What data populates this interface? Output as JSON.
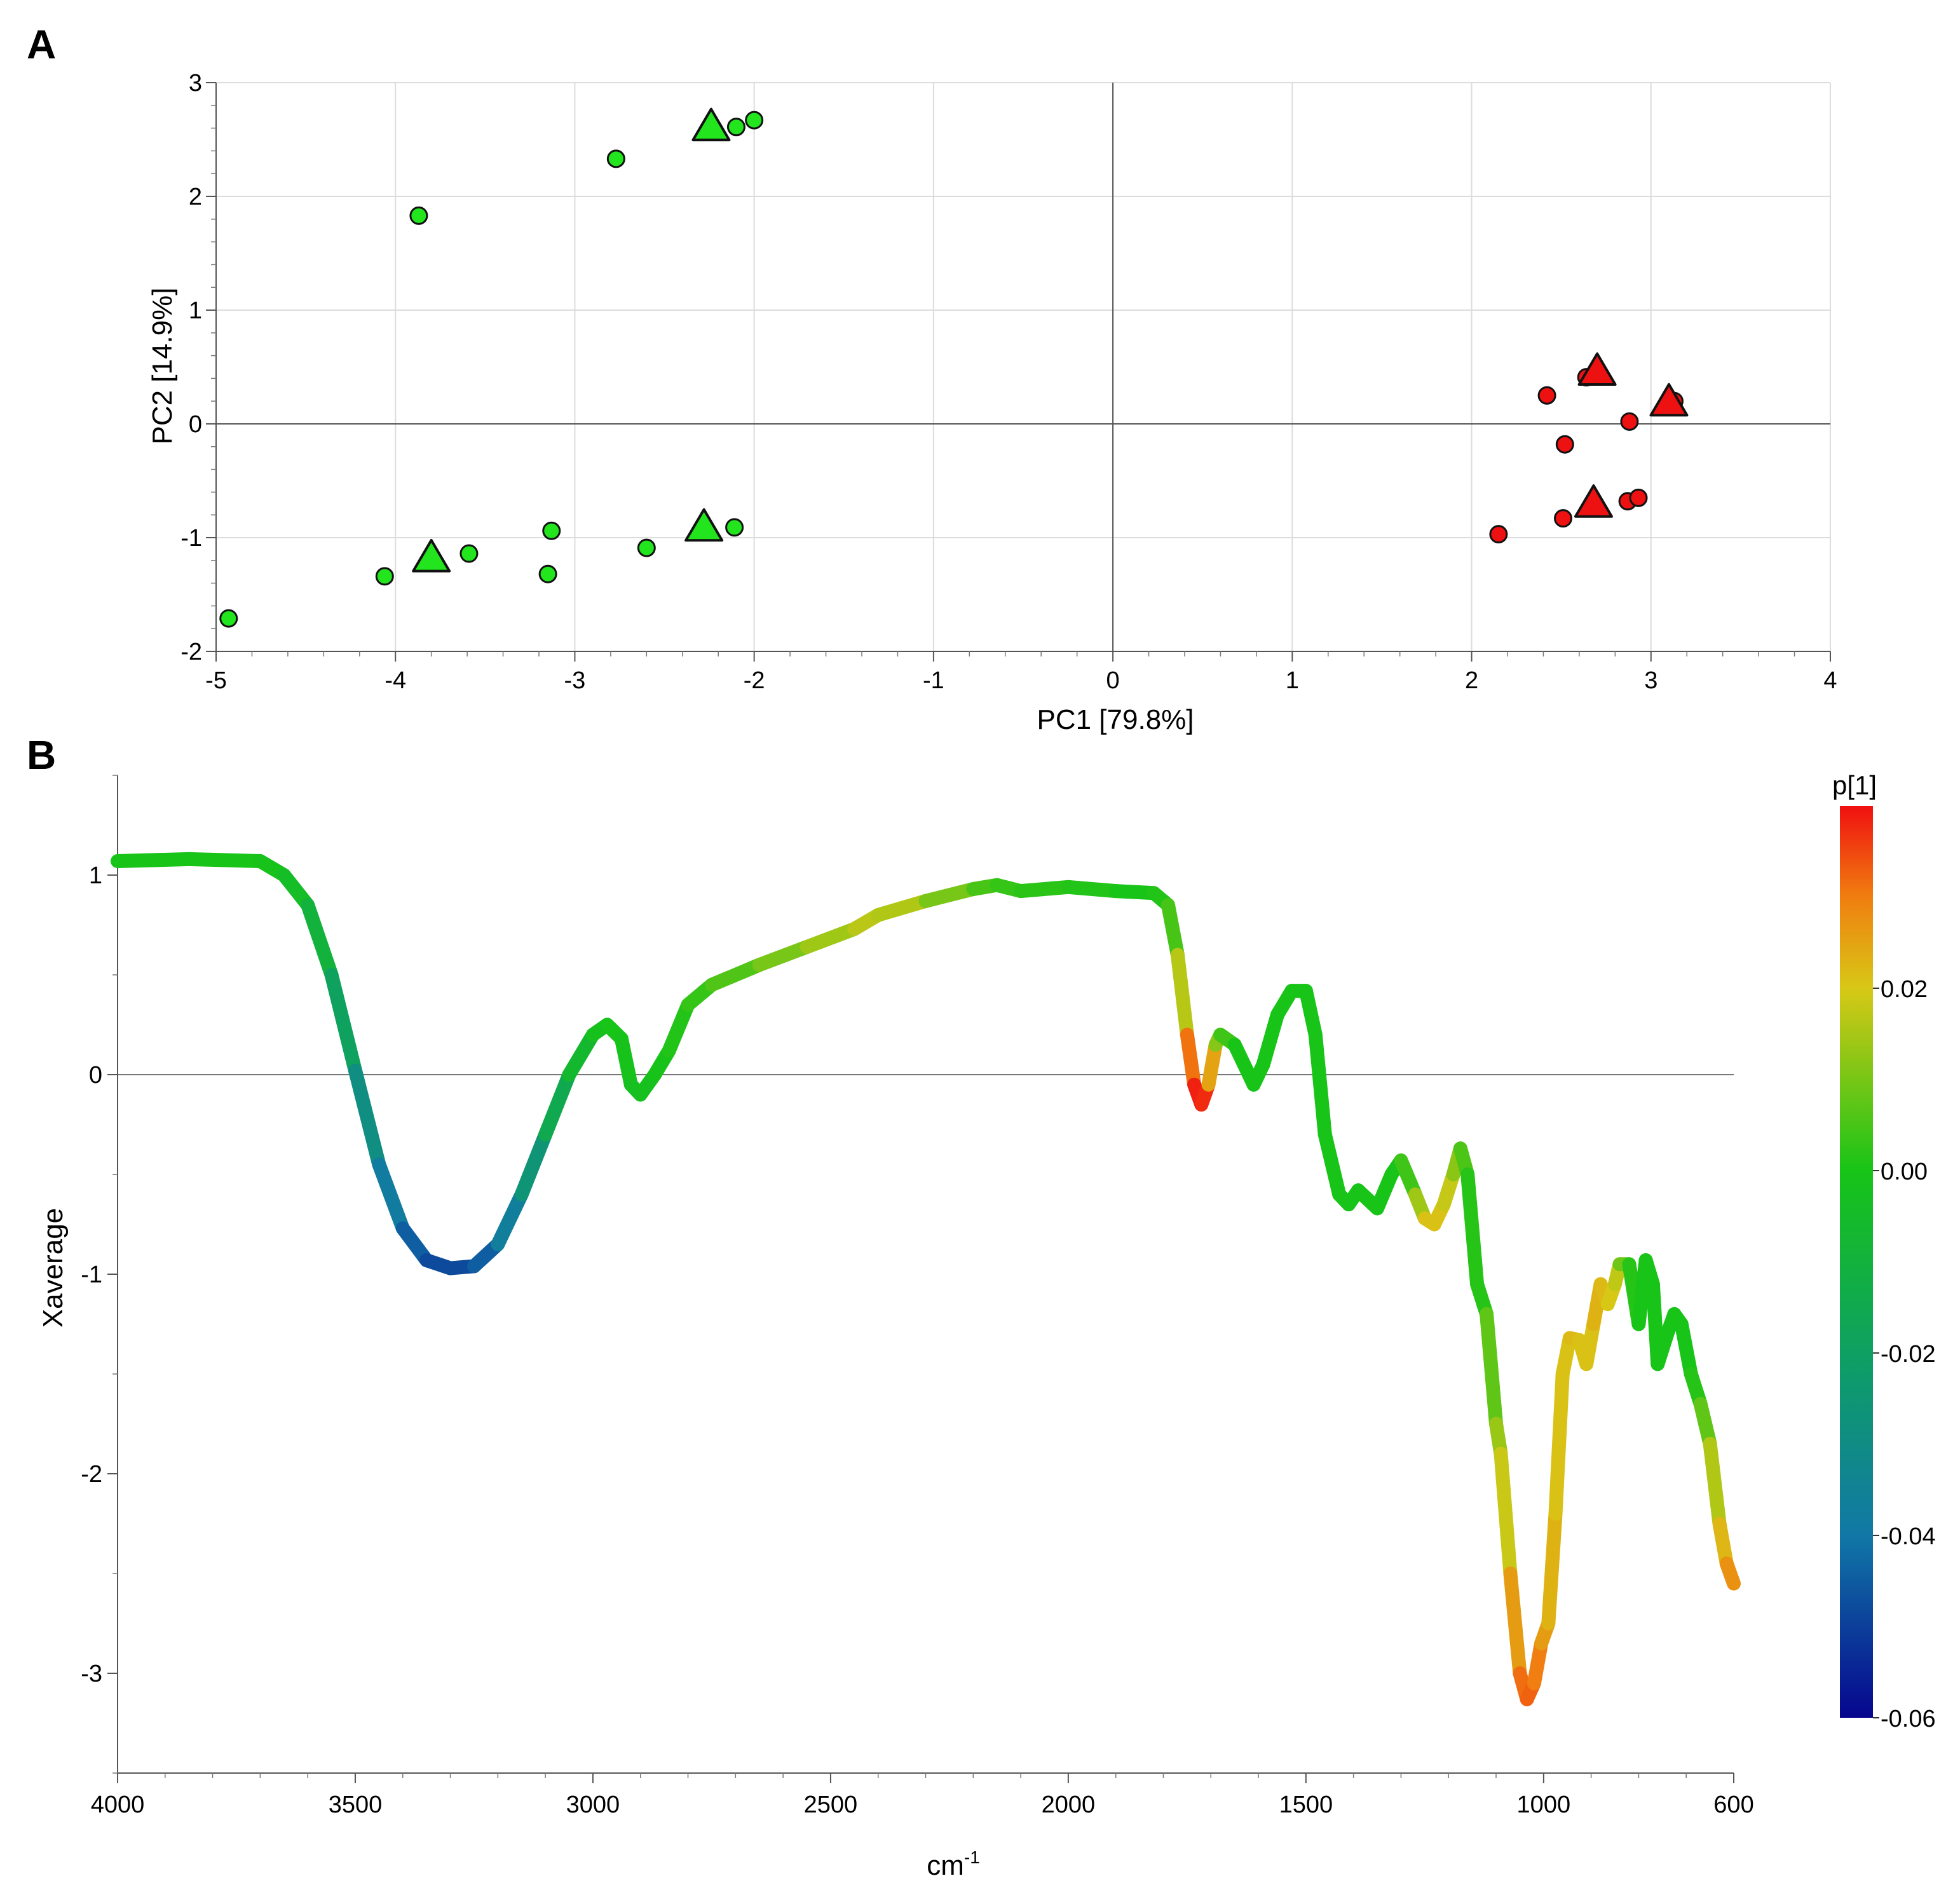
{
  "chart_data": [
    {
      "panel": "A",
      "type": "scatter",
      "xlabel": "PC1 [79.8%]",
      "ylabel": "PC2 [14.9%]",
      "xlim": [
        -5,
        4
      ],
      "ylim": [
        -2,
        3
      ],
      "xticks": [
        -5,
        -4,
        -3,
        -2,
        -1,
        0,
        1,
        2,
        3,
        4
      ],
      "yticks": [
        -2,
        -1,
        0,
        1,
        2,
        3
      ],
      "grid": true,
      "series": [
        {
          "name": "green-circles",
          "marker": "circle",
          "color": "#22e51e",
          "points": [
            {
              "x": -4.93,
              "y": -1.71
            },
            {
              "x": -4.06,
              "y": -1.34
            },
            {
              "x": -3.87,
              "y": 1.83
            },
            {
              "x": -3.59,
              "y": -1.14
            },
            {
              "x": -3.15,
              "y": -1.32
            },
            {
              "x": -3.13,
              "y": -0.94
            },
            {
              "x": -2.77,
              "y": 2.33
            },
            {
              "x": -2.6,
              "y": -1.09
            },
            {
              "x": -2.11,
              "y": -0.91
            },
            {
              "x": -2.1,
              "y": 2.61
            },
            {
              "x": -2.0,
              "y": 2.67
            }
          ]
        },
        {
          "name": "green-triangles",
          "marker": "triangle",
          "color": "#22e51e",
          "points": [
            {
              "x": -3.8,
              "y": -1.19
            },
            {
              "x": -2.28,
              "y": -0.92
            },
            {
              "x": -2.24,
              "y": 2.6
            }
          ]
        },
        {
          "name": "red-circles",
          "marker": "circle",
          "color": "#ee1111",
          "points": [
            {
              "x": 2.15,
              "y": -0.97
            },
            {
              "x": 2.42,
              "y": 0.25
            },
            {
              "x": 2.52,
              "y": -0.18
            },
            {
              "x": 2.51,
              "y": -0.83
            },
            {
              "x": 2.64,
              "y": 0.41
            },
            {
              "x": 2.87,
              "y": -0.68
            },
            {
              "x": 2.88,
              "y": 0.02
            },
            {
              "x": 2.93,
              "y": -0.65
            },
            {
              "x": 3.13,
              "y": 0.2
            }
          ]
        },
        {
          "name": "red-triangles",
          "marker": "triangle",
          "color": "#ee1111",
          "points": [
            {
              "x": 2.7,
              "y": 0.45
            },
            {
              "x": 3.1,
              "y": 0.18
            },
            {
              "x": 2.68,
              "y": -0.71
            }
          ]
        }
      ]
    },
    {
      "panel": "B",
      "type": "line",
      "xlabel": "cm",
      "xlabel_sup": "-1",
      "ylabel": "Xaverage",
      "xlim": [
        4000,
        600
      ],
      "ylim": [
        -3.5,
        1.5
      ],
      "xticks": [
        4000,
        3500,
        3000,
        2500,
        2000,
        1500,
        1000,
        600
      ],
      "yticks": [
        -3,
        -2,
        -1,
        0,
        1
      ],
      "colorbar": {
        "title": "p[1]",
        "range": [
          -0.06,
          0.04
        ],
        "ticks": [
          0.02,
          0.0,
          -0.02,
          -0.04,
          -0.06
        ],
        "tick_labels": [
          "0.02",
          "0.00",
          "-0.02",
          "-0.04",
          "-0.06"
        ],
        "stops": [
          {
            "value": -0.06,
            "color": "#06068e"
          },
          {
            "value": -0.04,
            "color": "#1178a6"
          },
          {
            "value": -0.02,
            "color": "#0ea062"
          },
          {
            "value": 0.0,
            "color": "#17c417"
          },
          {
            "value": 0.02,
            "color": "#d8c816"
          },
          {
            "value": 0.03,
            "color": "#f07e10"
          },
          {
            "value": 0.04,
            "color": "#f01010"
          }
        ]
      },
      "points": [
        {
          "x": 4000,
          "y": 1.07,
          "p": 0.0
        },
        {
          "x": 3850,
          "y": 1.08,
          "p": 0.0
        },
        {
          "x": 3700,
          "y": 1.07,
          "p": 0.0
        },
        {
          "x": 3650,
          "y": 1.0,
          "p": -0.002
        },
        {
          "x": 3600,
          "y": 0.85,
          "p": -0.006
        },
        {
          "x": 3550,
          "y": 0.5,
          "p": -0.014
        },
        {
          "x": 3500,
          "y": 0.02,
          "p": -0.024
        },
        {
          "x": 3450,
          "y": -0.45,
          "p": -0.034
        },
        {
          "x": 3400,
          "y": -0.77,
          "p": -0.042
        },
        {
          "x": 3350,
          "y": -0.93,
          "p": -0.047
        },
        {
          "x": 3300,
          "y": -0.97,
          "p": -0.049
        },
        {
          "x": 3250,
          "y": -0.96,
          "p": -0.047
        },
        {
          "x": 3200,
          "y": -0.85,
          "p": -0.042
        },
        {
          "x": 3150,
          "y": -0.6,
          "p": -0.032
        },
        {
          "x": 3100,
          "y": -0.3,
          "p": -0.02
        },
        {
          "x": 3050,
          "y": 0.0,
          "p": -0.01
        },
        {
          "x": 3000,
          "y": 0.2,
          "p": -0.003
        },
        {
          "x": 2970,
          "y": 0.25,
          "p": 0.0
        },
        {
          "x": 2940,
          "y": 0.18,
          "p": 0.0
        },
        {
          "x": 2920,
          "y": -0.05,
          "p": -0.002
        },
        {
          "x": 2900,
          "y": -0.1,
          "p": -0.003
        },
        {
          "x": 2870,
          "y": 0.0,
          "p": -0.001
        },
        {
          "x": 2840,
          "y": 0.12,
          "p": 0.0
        },
        {
          "x": 2800,
          "y": 0.35,
          "p": 0.002
        },
        {
          "x": 2750,
          "y": 0.45,
          "p": 0.004
        },
        {
          "x": 2650,
          "y": 0.55,
          "p": 0.008
        },
        {
          "x": 2550,
          "y": 0.64,
          "p": 0.012
        },
        {
          "x": 2450,
          "y": 0.73,
          "p": 0.016
        },
        {
          "x": 2400,
          "y": 0.8,
          "p": 0.018
        },
        {
          "x": 2300,
          "y": 0.87,
          "p": 0.014
        },
        {
          "x": 2200,
          "y": 0.93,
          "p": 0.006
        },
        {
          "x": 2150,
          "y": 0.95,
          "p": 0.004
        },
        {
          "x": 2100,
          "y": 0.92,
          "p": 0.002
        },
        {
          "x": 2000,
          "y": 0.94,
          "p": 0.002
        },
        {
          "x": 1900,
          "y": 0.92,
          "p": 0.0
        },
        {
          "x": 1820,
          "y": 0.91,
          "p": 0.0
        },
        {
          "x": 1790,
          "y": 0.85,
          "p": 0.002
        },
        {
          "x": 1770,
          "y": 0.6,
          "p": 0.008
        },
        {
          "x": 1750,
          "y": 0.2,
          "p": 0.025
        },
        {
          "x": 1735,
          "y": -0.05,
          "p": 0.037
        },
        {
          "x": 1720,
          "y": -0.15,
          "p": 0.04
        },
        {
          "x": 1705,
          "y": -0.05,
          "p": 0.035
        },
        {
          "x": 1690,
          "y": 0.15,
          "p": 0.015
        },
        {
          "x": 1680,
          "y": 0.2,
          "p": 0.008
        },
        {
          "x": 1650,
          "y": 0.15,
          "p": 0.0
        },
        {
          "x": 1630,
          "y": 0.05,
          "p": 0.0
        },
        {
          "x": 1610,
          "y": -0.05,
          "p": 0.0
        },
        {
          "x": 1590,
          "y": 0.05,
          "p": 0.0
        },
        {
          "x": 1560,
          "y": 0.3,
          "p": 0.0
        },
        {
          "x": 1530,
          "y": 0.42,
          "p": 0.0
        },
        {
          "x": 1500,
          "y": 0.42,
          "p": 0.0
        },
        {
          "x": 1480,
          "y": 0.2,
          "p": 0.0
        },
        {
          "x": 1460,
          "y": -0.3,
          "p": 0.0
        },
        {
          "x": 1430,
          "y": -0.6,
          "p": 0.0
        },
        {
          "x": 1410,
          "y": -0.65,
          "p": 0.0
        },
        {
          "x": 1390,
          "y": -0.58,
          "p": 0.0
        },
        {
          "x": 1350,
          "y": -0.67,
          "p": 0.0
        },
        {
          "x": 1320,
          "y": -0.5,
          "p": 0.0
        },
        {
          "x": 1300,
          "y": -0.43,
          "p": 0.0
        },
        {
          "x": 1270,
          "y": -0.6,
          "p": 0.008
        },
        {
          "x": 1250,
          "y": -0.72,
          "p": 0.02
        },
        {
          "x": 1230,
          "y": -0.75,
          "p": 0.022
        },
        {
          "x": 1210,
          "y": -0.65,
          "p": 0.02
        },
        {
          "x": 1190,
          "y": -0.5,
          "p": 0.016
        },
        {
          "x": 1175,
          "y": -0.37,
          "p": 0.008
        },
        {
          "x": 1160,
          "y": -0.5,
          "p": 0.003
        },
        {
          "x": 1140,
          "y": -1.05,
          "p": 0.0
        },
        {
          "x": 1120,
          "y": -1.2,
          "p": 0.003
        },
        {
          "x": 1100,
          "y": -1.75,
          "p": 0.012
        },
        {
          "x": 1090,
          "y": -1.9,
          "p": 0.015
        },
        {
          "x": 1070,
          "y": -2.5,
          "p": 0.022
        },
        {
          "x": 1050,
          "y": -3.0,
          "p": 0.03
        },
        {
          "x": 1035,
          "y": -3.13,
          "p": 0.033
        },
        {
          "x": 1020,
          "y": -3.05,
          "p": 0.032
        },
        {
          "x": 1005,
          "y": -2.85,
          "p": 0.028
        },
        {
          "x": 990,
          "y": -2.75,
          "p": 0.024
        },
        {
          "x": 975,
          "y": -2.2,
          "p": 0.022
        },
        {
          "x": 960,
          "y": -1.5,
          "p": 0.02
        },
        {
          "x": 945,
          "y": -1.32,
          "p": 0.022
        },
        {
          "x": 925,
          "y": -1.33,
          "p": 0.022
        },
        {
          "x": 910,
          "y": -1.45,
          "p": 0.02
        },
        {
          "x": 895,
          "y": -1.25,
          "p": 0.022
        },
        {
          "x": 880,
          "y": -1.05,
          "p": 0.024
        },
        {
          "x": 865,
          "y": -1.15,
          "p": 0.02
        },
        {
          "x": 850,
          "y": -1.05,
          "p": 0.02
        },
        {
          "x": 840,
          "y": -0.95,
          "p": 0.015
        },
        {
          "x": 820,
          "y": -0.95,
          "p": 0.003
        },
        {
          "x": 800,
          "y": -1.25,
          "p": 0.0
        },
        {
          "x": 785,
          "y": -0.93,
          "p": 0.0
        },
        {
          "x": 770,
          "y": -1.05,
          "p": 0.0
        },
        {
          "x": 760,
          "y": -1.45,
          "p": 0.0
        },
        {
          "x": 740,
          "y": -1.3,
          "p": 0.0
        },
        {
          "x": 725,
          "y": -1.2,
          "p": 0.0
        },
        {
          "x": 710,
          "y": -1.25,
          "p": 0.0
        },
        {
          "x": 690,
          "y": -1.5,
          "p": 0.0
        },
        {
          "x": 670,
          "y": -1.65,
          "p": 0.003
        },
        {
          "x": 650,
          "y": -1.85,
          "p": 0.012
        },
        {
          "x": 630,
          "y": -2.25,
          "p": 0.02
        },
        {
          "x": 615,
          "y": -2.45,
          "p": 0.025
        },
        {
          "x": 600,
          "y": -2.55,
          "p": 0.03
        }
      ]
    }
  ]
}
